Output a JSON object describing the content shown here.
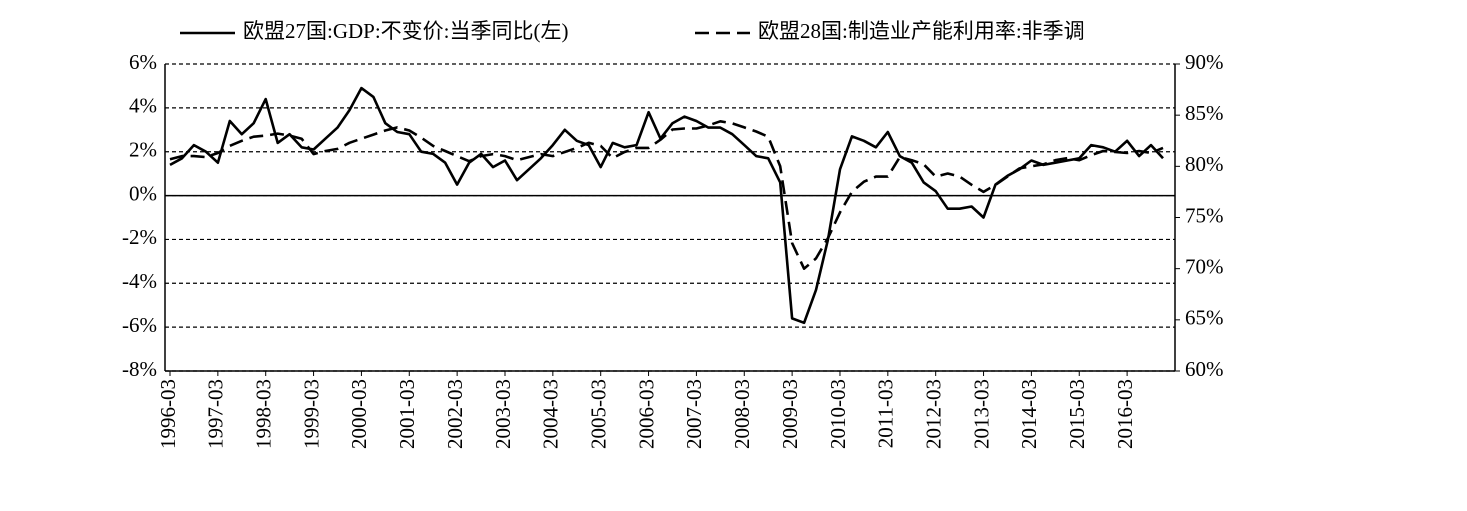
{
  "chart_data": {
    "type": "line",
    "categories": [
      "1996-03",
      null,
      null,
      null,
      "1997-03",
      null,
      null,
      null,
      "1998-03",
      null,
      null,
      null,
      "1999-03",
      null,
      null,
      null,
      "2000-03",
      null,
      null,
      null,
      "2001-03",
      null,
      null,
      null,
      "2002-03",
      null,
      null,
      null,
      "2003-03",
      null,
      null,
      null,
      "2004-03",
      null,
      null,
      null,
      "2005-03",
      null,
      null,
      null,
      "2006-03",
      null,
      null,
      null,
      "2007-03",
      null,
      null,
      null,
      "2008-03",
      null,
      null,
      null,
      "2009-03",
      null,
      null,
      null,
      "2010-03",
      null,
      null,
      null,
      "2011-03",
      null,
      null,
      null,
      "2012-03",
      null,
      null,
      null,
      "2013-03",
      null,
      null,
      null,
      "2014-03",
      null,
      null,
      null,
      "2015-03",
      null,
      null,
      null,
      "2016-03",
      null,
      null,
      null
    ],
    "series": [
      {
        "name": "欧盟27国:GDP:不变价:当季同比(左)",
        "color": "#000000",
        "dash": "solid",
        "values": [
          1.4,
          1.7,
          2.3,
          2.0,
          1.5,
          3.4,
          2.8,
          3.3,
          4.4,
          2.4,
          2.8,
          2.2,
          2.1,
          2.6,
          3.1,
          3.9,
          4.9,
          4.5,
          3.3,
          2.9,
          2.8,
          2.0,
          1.9,
          1.5,
          0.5,
          1.5,
          1.9,
          1.3,
          1.6,
          0.7,
          1.2,
          1.7,
          2.3,
          3.0,
          2.5,
          2.3,
          1.3,
          2.4,
          2.2,
          2.3,
          3.8,
          2.6,
          3.3,
          3.6,
          3.4,
          3.1,
          3.1,
          2.8,
          2.3,
          1.8,
          1.7,
          0.6,
          -5.6,
          -5.8,
          -4.3,
          -2.0,
          1.2,
          2.7,
          2.5,
          2.2,
          2.9,
          1.8,
          1.5,
          0.6,
          0.2,
          -0.6,
          -0.6,
          -0.5,
          -1.0,
          0.5,
          0.9,
          1.2,
          1.6,
          1.4,
          1.5,
          1.6,
          1.7,
          2.3,
          2.2,
          2.0,
          2.5,
          1.8,
          2.3,
          1.7
        ]
      },
      {
        "name": "欧盟28国:制造业产能利用率:非季调",
        "color": "#000000",
        "dash": "dashed",
        "axis": "y2",
        "values": [
          80.7,
          81.0,
          81.0,
          80.9,
          81.3,
          82.0,
          82.5,
          82.9,
          83.0,
          83.2,
          83.0,
          82.7,
          81.2,
          81.5,
          81.7,
          82.3,
          82.7,
          83.1,
          83.5,
          83.8,
          83.5,
          82.8,
          82.0,
          81.5,
          81.0,
          80.5,
          81.0,
          81.2,
          81.0,
          80.6,
          80.9,
          81.2,
          81.0,
          81.4,
          81.8,
          82.3,
          82.0,
          80.8,
          81.4,
          81.8,
          81.8,
          82.6,
          83.6,
          83.7,
          83.7,
          84.0,
          84.4,
          84.2,
          83.8,
          83.4,
          82.9,
          80.0,
          72.5,
          70.0,
          71.0,
          73.0,
          75.5,
          77.5,
          78.5,
          79.0,
          79.0,
          80.9,
          80.6,
          80.2,
          79.0,
          79.3,
          79.0,
          78.2,
          77.5,
          78.2,
          79.0,
          79.8,
          80.0,
          80.2,
          80.6,
          80.8,
          80.6,
          81.1,
          81.5,
          81.4,
          81.3,
          81.5,
          81.3,
          81.8
        ]
      }
    ],
    "ylim": [
      -8,
      6
    ],
    "yticks": [
      {
        "value": -8,
        "label": "-8%"
      },
      {
        "value": -6,
        "label": "-6%"
      },
      {
        "value": -4,
        "label": "-4%"
      },
      {
        "value": -2,
        "label": "-2%"
      },
      {
        "value": 0,
        "label": "0%"
      },
      {
        "value": 2,
        "label": "2%"
      },
      {
        "value": 4,
        "label": "4%"
      },
      {
        "value": 6,
        "label": "6%"
      }
    ],
    "y2lim": [
      60,
      90
    ],
    "y2ticks": [
      {
        "value": 60,
        "label": "60%"
      },
      {
        "value": 65,
        "label": "65%"
      },
      {
        "value": 70,
        "label": "70%"
      },
      {
        "value": 75,
        "label": "75%"
      },
      {
        "value": 80,
        "label": "80%"
      },
      {
        "value": 85,
        "label": "85%"
      },
      {
        "value": 90,
        "label": "90%"
      }
    ],
    "grid": true
  }
}
